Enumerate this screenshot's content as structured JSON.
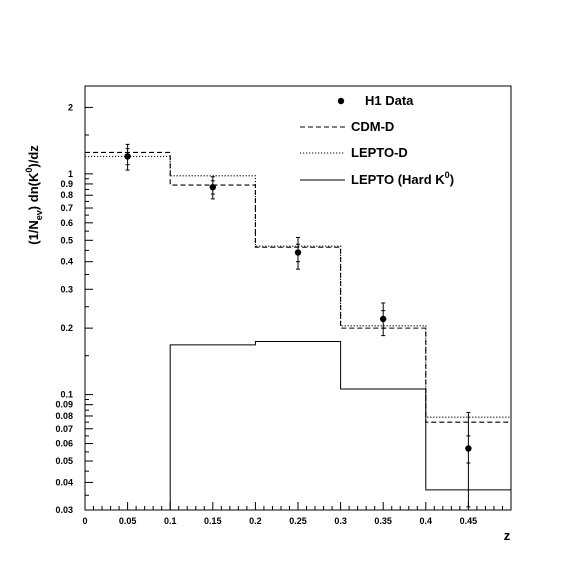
{
  "chart_data": {
    "type": "line",
    "title": "",
    "xlabel": "z",
    "ylabel_main": "(1/N",
    "ylabel_sub": "ev",
    "ylabel_mid": ") dn(K",
    "ylabel_sup": "0",
    "ylabel_end": ")/dz",
    "xlim": [
      0,
      0.5
    ],
    "ylim": [
      0.03,
      2.5
    ],
    "y_scale": "log",
    "x_ticks": [
      0,
      0.05,
      0.1,
      0.15,
      0.2,
      0.25,
      0.3,
      0.35,
      0.4,
      0.45
    ],
    "x_tick_labels": [
      "0",
      "0.05",
      "0.1",
      "0.15",
      "0.2",
      "0.25",
      "0.3",
      "0.35",
      "0.4",
      "0.45"
    ],
    "y_major_ticks": [
      0.03,
      0.04,
      0.05,
      0.06,
      0.07,
      0.08,
      0.09,
      0.1,
      0.2,
      0.3,
      0.4,
      0.5,
      0.6,
      0.7,
      0.8,
      0.9,
      1,
      2
    ],
    "y_tick_labels": [
      "0.03",
      "0.04",
      "0.05",
      "0.06",
      "0.07",
      "0.08",
      "0.09",
      "0.1",
      "0.2",
      "0.3",
      "0.4",
      "0.5",
      "0.6",
      "0.7",
      "0.8",
      "0.9",
      "1",
      "2"
    ],
    "legend_position": "top-right",
    "grid": false,
    "data_points": {
      "name": "H1 Data",
      "x": [
        0.05,
        0.15,
        0.25,
        0.35,
        0.45
      ],
      "y": [
        1.2,
        0.87,
        0.44,
        0.22,
        0.057
      ],
      "err_total_low": [
        0.16,
        0.1,
        0.07,
        0.035,
        0.026
      ],
      "err_total_high": [
        0.16,
        0.1,
        0.075,
        0.04,
        0.026
      ],
      "err_stat_low": [
        0.1,
        0.06,
        0.04,
        0.02,
        0.008
      ],
      "err_stat_high": [
        0.1,
        0.06,
        0.04,
        0.02,
        0.008
      ]
    },
    "series": [
      {
        "name": "CDM-D",
        "style": "dashed",
        "bin_edges": [
          0,
          0.1,
          0.2,
          0.3,
          0.4,
          0.5
        ],
        "values": [
          1.25,
          0.89,
          0.465,
          0.2,
          0.075
        ]
      },
      {
        "name": "LEPTO-D",
        "style": "dotted",
        "bin_edges": [
          0,
          0.1,
          0.2,
          0.3,
          0.4,
          0.5
        ],
        "values": [
          1.2,
          0.98,
          0.47,
          0.205,
          0.079
        ]
      },
      {
        "name": "LEPTO (Hard K",
        "name_sup": "0",
        "name_end": ")",
        "style": "solid",
        "bin_edges": [
          0.1,
          0.2,
          0.3,
          0.4,
          0.5
        ],
        "values": [
          0.168,
          0.174,
          0.106,
          0.037
        ],
        "start_from_bottom": true
      }
    ]
  }
}
